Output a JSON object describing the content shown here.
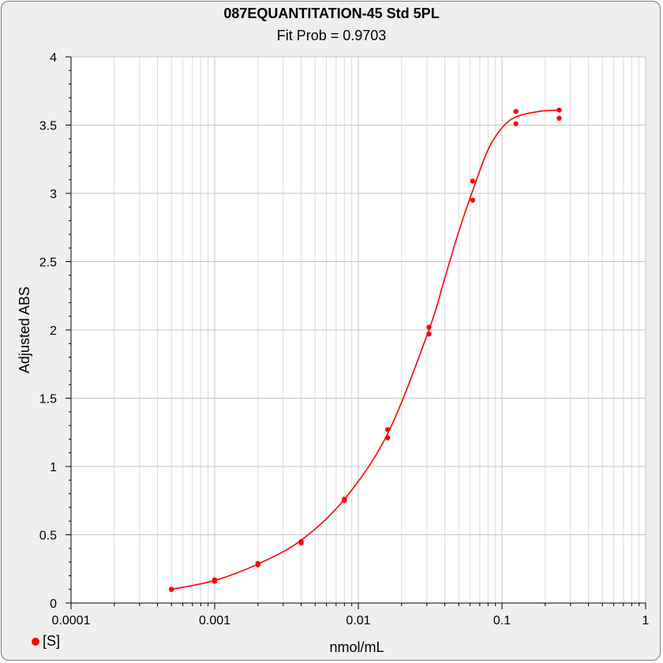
{
  "chart_data": {
    "type": "scatter",
    "title": "087EQUANTITATION-45  Std 5PL",
    "subtitle": "Fit Prob = 0.9703",
    "xlabel": "nmol/mL",
    "ylabel": "Adjusted ABS",
    "x_scale": "log",
    "xlim": [
      0.0001,
      1
    ],
    "ylim": [
      0,
      4
    ],
    "x_ticks": [
      "0.0001",
      "0.001",
      "0.01",
      "0.1",
      "1"
    ],
    "y_ticks": [
      "0",
      "0.5",
      "1",
      "1.5",
      "2",
      "2.5",
      "3",
      "3.5",
      "4"
    ],
    "grid": true,
    "series": [
      {
        "name": "[S]",
        "color": "#ff0000",
        "points": [
          [
            0.0005,
            0.1
          ],
          [
            0.0005,
            0.1
          ],
          [
            0.001,
            0.16
          ],
          [
            0.001,
            0.17
          ],
          [
            0.002,
            0.28
          ],
          [
            0.002,
            0.29
          ],
          [
            0.004,
            0.44
          ],
          [
            0.004,
            0.45
          ],
          [
            0.008,
            0.75
          ],
          [
            0.008,
            0.76
          ],
          [
            0.016,
            1.21
          ],
          [
            0.016,
            1.27
          ],
          [
            0.031,
            1.97
          ],
          [
            0.031,
            2.02
          ],
          [
            0.0625,
            2.95
          ],
          [
            0.0625,
            3.09
          ],
          [
            0.125,
            3.51
          ],
          [
            0.125,
            3.6
          ],
          [
            0.25,
            3.55
          ],
          [
            0.25,
            3.61
          ]
        ],
        "fit_curve": [
          [
            0.0005,
            0.1
          ],
          [
            0.001,
            0.165
          ],
          [
            0.002,
            0.285
          ],
          [
            0.004,
            0.46
          ],
          [
            0.008,
            0.76
          ],
          [
            0.016,
            1.24
          ],
          [
            0.031,
            2.0
          ],
          [
            0.04,
            2.38
          ],
          [
            0.05,
            2.72
          ],
          [
            0.0625,
            3.02
          ],
          [
            0.08,
            3.32
          ],
          [
            0.1,
            3.48
          ],
          [
            0.125,
            3.56
          ],
          [
            0.18,
            3.6
          ],
          [
            0.25,
            3.61
          ]
        ]
      }
    ],
    "legend": {
      "position": "bottom-left",
      "label": "[S]"
    }
  }
}
